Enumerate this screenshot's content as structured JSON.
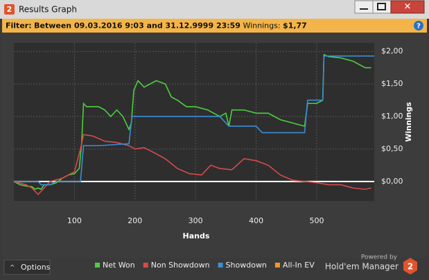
{
  "window": {
    "icon": "2",
    "title": "Results Graph"
  },
  "filter": {
    "label": "Filter:",
    "range": "Between 09.03.2016 9:03 and 31.12.9999 23:59",
    "winnings_label": "Winnings:",
    "winnings": "$1,77"
  },
  "chart_data": {
    "type": "line",
    "xlabel": "Hands",
    "ylabel": "Winnings",
    "xlim": [
      0,
      595
    ],
    "ylim": [
      -0.3,
      2.13
    ],
    "xticks": [
      100,
      200,
      300,
      400,
      500
    ],
    "yticks": [
      {
        "value": 0,
        "label": "$0,00"
      },
      {
        "value": 0.5,
        "label": "$0,50"
      },
      {
        "value": 1,
        "label": "$1,00"
      },
      {
        "value": 1.5,
        "label": "$1,50"
      },
      {
        "value": 2,
        "label": "$2,00"
      }
    ],
    "grid": true,
    "series": [
      {
        "name": "Net Won",
        "color": "#4cd03c",
        "x": [
          0,
          10,
          20,
          30,
          35,
          40,
          45,
          50,
          60,
          70,
          80,
          90,
          100,
          108,
          112,
          115,
          120,
          130,
          140,
          150,
          160,
          170,
          180,
          190,
          194,
          198,
          205,
          215,
          225,
          235,
          250,
          260,
          270,
          285,
          300,
          320,
          340,
          350,
          355,
          360,
          380,
          400,
          420,
          440,
          460,
          480,
          485,
          500,
          510,
          512,
          520,
          540,
          560,
          580,
          590
        ],
        "values": [
          0,
          -0.05,
          -0.07,
          -0.08,
          -0.12,
          -0.1,
          -0.12,
          -0.05,
          -0.05,
          -0.02,
          0.05,
          0.1,
          0.12,
          0.2,
          0.6,
          1.2,
          1.15,
          1.15,
          1.15,
          1.1,
          1.0,
          1.1,
          1.0,
          0.8,
          0.9,
          1.4,
          1.55,
          1.45,
          1.5,
          1.55,
          1.5,
          1.3,
          1.25,
          1.15,
          1.15,
          1.1,
          1.0,
          1.05,
          0.85,
          1.1,
          1.1,
          1.05,
          1.05,
          0.95,
          0.9,
          0.85,
          1.2,
          1.2,
          1.25,
          1.95,
          1.92,
          1.9,
          1.85,
          1.75,
          1.75
        ]
      },
      {
        "name": "Non Showdown",
        "color": "#d84a4a",
        "x": [
          0,
          20,
          30,
          40,
          50,
          60,
          80,
          100,
          110,
          115,
          130,
          150,
          170,
          190,
          200,
          215,
          230,
          250,
          270,
          290,
          310,
          325,
          340,
          360,
          380,
          400,
          420,
          440,
          460,
          480,
          500,
          520,
          540,
          560,
          580,
          590
        ],
        "values": [
          0,
          -0.05,
          -0.1,
          -0.2,
          -0.1,
          0,
          0.05,
          0.15,
          0.5,
          0.72,
          0.7,
          0.62,
          0.6,
          0.55,
          0.5,
          0.52,
          0.45,
          0.35,
          0.2,
          0.12,
          0.1,
          0.25,
          0.2,
          0.18,
          0.35,
          0.32,
          0.25,
          0.1,
          0.02,
          0.0,
          -0.02,
          -0.05,
          -0.05,
          -0.1,
          -0.12,
          -0.1
        ]
      },
      {
        "name": "Showdown",
        "color": "#3a8fd8",
        "x": [
          0,
          40,
          45,
          60,
          70,
          100,
          110,
          115,
          140,
          170,
          190,
          195,
          300,
          340,
          355,
          400,
          410,
          480,
          485,
          510,
          512,
          595
        ],
        "values": [
          0,
          0,
          -0.05,
          -0.05,
          0,
          0,
          0,
          0.55,
          0.55,
          0.57,
          0.58,
          1.0,
          1.0,
          1.0,
          0.85,
          0.85,
          0.75,
          0.75,
          1.25,
          1.25,
          1.93,
          1.93
        ]
      },
      {
        "name": "All-In EV",
        "color": "#f0962c",
        "x": [],
        "values": []
      }
    ]
  },
  "footer": {
    "options": "Options",
    "powered_by": "Powered by",
    "brand": "Hold'em Manager",
    "brand_logo": "2"
  }
}
